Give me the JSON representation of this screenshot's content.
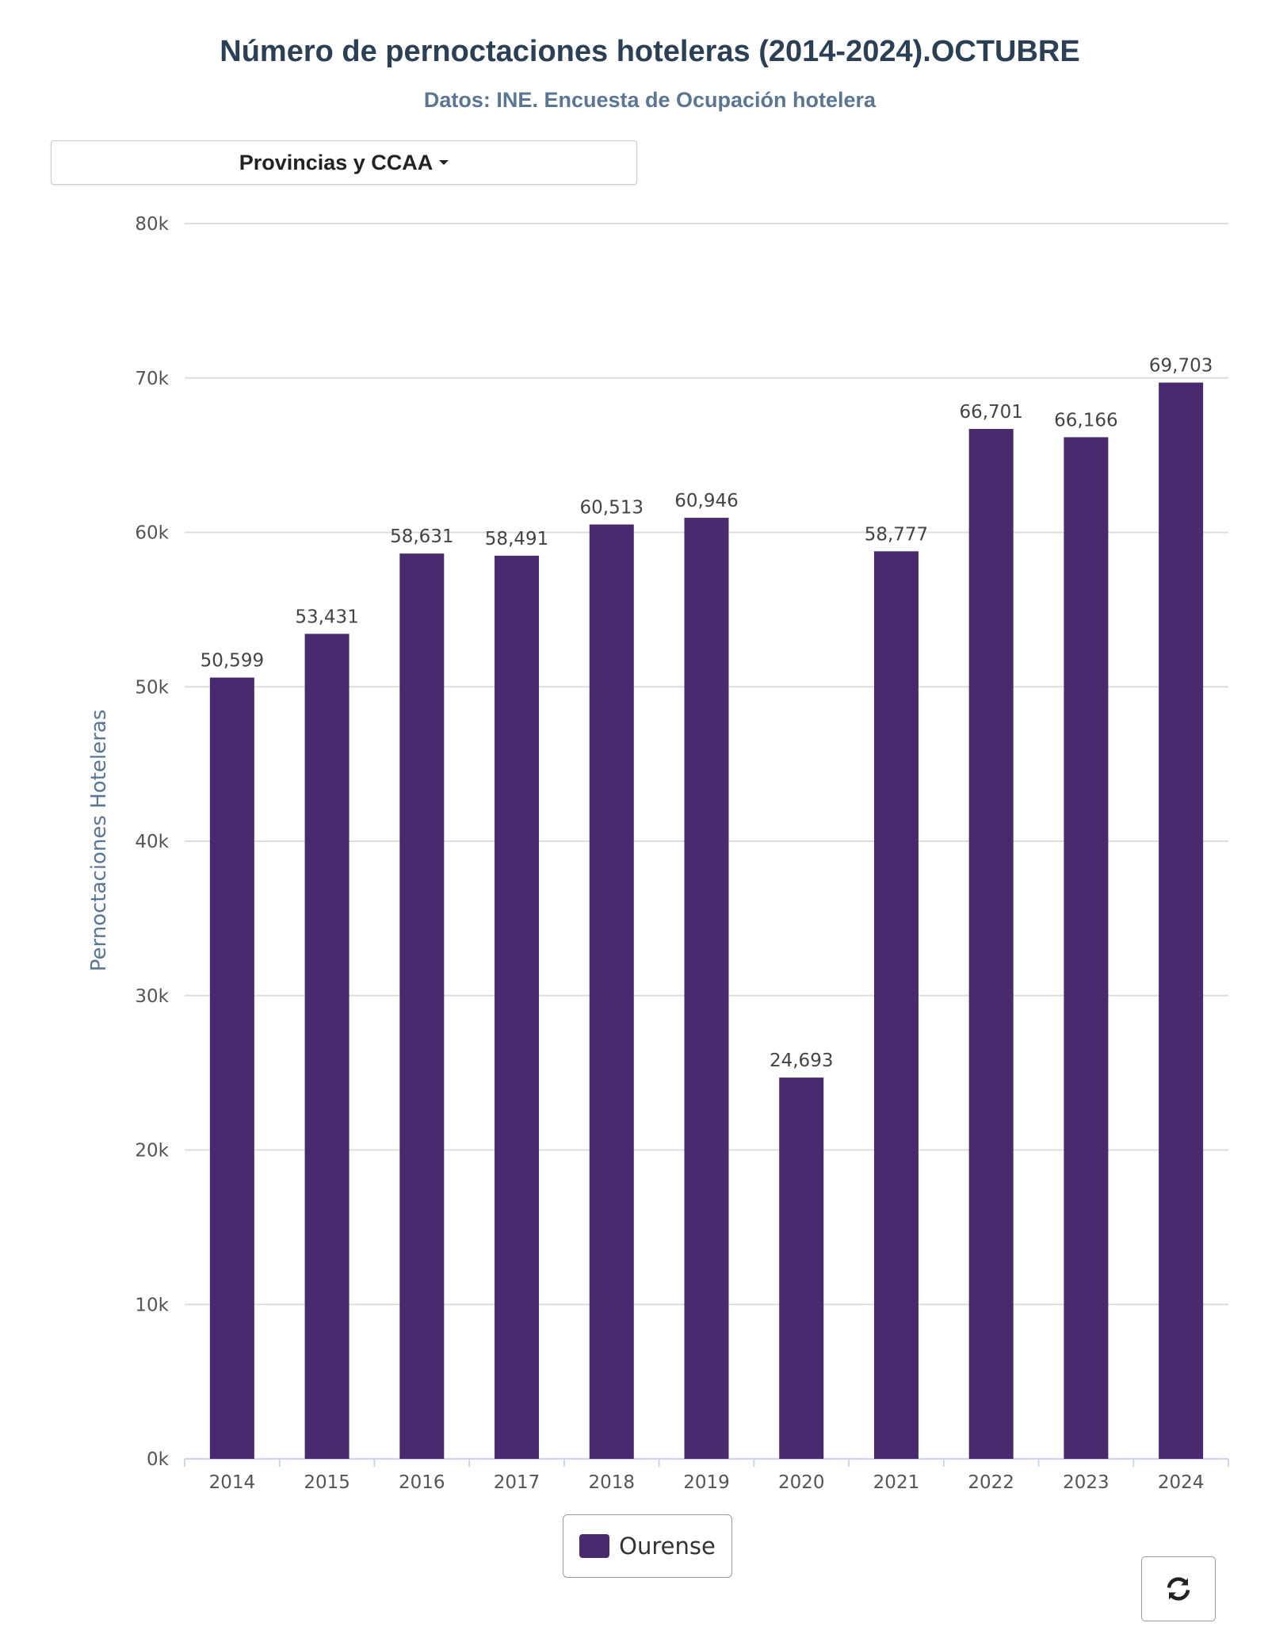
{
  "title": "Número de pernoctaciones hoteleras (2014-2024).OCTUBRE",
  "subtitle": "Datos: INE. Encuesta de Ocupación hotelera",
  "dropdown": {
    "label": "Provincias y CCAA"
  },
  "refresh_icon": "refresh-icon",
  "chart_data": {
    "type": "bar",
    "categories": [
      "2014",
      "2015",
      "2016",
      "2017",
      "2018",
      "2019",
      "2020",
      "2021",
      "2022",
      "2023",
      "2024"
    ],
    "series": [
      {
        "name": "Ourense",
        "color": "#4a2a6e",
        "values": [
          50599,
          53431,
          58631,
          58491,
          60513,
          60946,
          24693,
          58777,
          66701,
          66166,
          69703
        ]
      }
    ],
    "data_labels": [
      "50,599",
      "53,431",
      "58,631",
      "58,491",
      "60,513",
      "60,946",
      "24,693",
      "58,777",
      "66,701",
      "66,166",
      "69,703"
    ],
    "xlabel": "",
    "ylabel": "Pernoctaciones Hoteleras",
    "ylim": [
      0,
      80000
    ],
    "yticks": [
      "0k",
      "10k",
      "20k",
      "30k",
      "40k",
      "50k",
      "60k",
      "70k",
      "80k"
    ],
    "grid": true,
    "legend": "bottom"
  }
}
